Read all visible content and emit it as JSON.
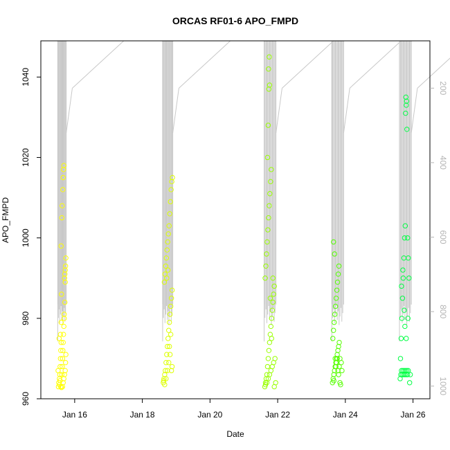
{
  "chart_data": {
    "type": "scatter",
    "title": "ORCAS RF01-6 APO_FMPD",
    "xlabel": "Date",
    "ylabel": "APO_FMPD",
    "x_ticks": [
      "Jan 16",
      "Jan 18",
      "Jan 20",
      "Jan 22",
      "Jan 24",
      "Jan 26"
    ],
    "x_tick_days": [
      16,
      18,
      20,
      22,
      24,
      26
    ],
    "xlim": [
      15.0,
      26.5
    ],
    "ylim": [
      960,
      1049
    ],
    "y_ticks": [
      960,
      980,
      1000,
      1020,
      1040
    ],
    "y2_label": "",
    "y2_ticks": [
      200,
      400,
      600,
      800,
      1000
    ],
    "y2lim": [
      1034,
      73
    ],
    "grid": false,
    "legend": "none",
    "flights": [
      {
        "start": 15.5,
        "end": 15.75,
        "color": "#FFFF00",
        "points": [
          [
            15.52,
            963
          ],
          [
            15.53,
            964
          ],
          [
            15.55,
            965
          ],
          [
            15.56,
            966
          ],
          [
            15.57,
            968
          ],
          [
            15.58,
            970
          ],
          [
            15.59,
            972
          ],
          [
            15.6,
            974
          ],
          [
            15.54,
            975
          ],
          [
            15.51,
            967
          ],
          [
            15.62,
            966
          ],
          [
            15.63,
            968
          ],
          [
            15.64,
            970
          ],
          [
            15.65,
            972
          ],
          [
            15.66,
            974
          ],
          [
            15.67,
            976
          ],
          [
            15.68,
            978
          ],
          [
            15.69,
            980
          ],
          [
            15.61,
            986
          ],
          [
            15.7,
            990
          ],
          [
            15.71,
            991
          ],
          [
            15.72,
            992
          ],
          [
            15.73,
            993
          ],
          [
            15.74,
            995
          ],
          [
            15.6,
            998
          ],
          [
            15.62,
            1005
          ],
          [
            15.63,
            1008
          ],
          [
            15.65,
            1012
          ],
          [
            15.66,
            1015
          ],
          [
            15.67,
            1017
          ],
          [
            15.68,
            1018
          ],
          [
            15.55,
            963.5
          ],
          [
            15.57,
            964.5
          ],
          [
            15.59,
            963
          ],
          [
            15.61,
            962.8
          ],
          [
            15.64,
            963
          ],
          [
            15.66,
            964
          ],
          [
            15.68,
            965
          ],
          [
            15.7,
            966
          ],
          [
            15.72,
            967
          ],
          [
            15.73,
            969
          ],
          [
            15.74,
            971
          ],
          [
            15.58,
            976
          ],
          [
            15.6,
            979
          ],
          [
            15.69,
            981
          ],
          [
            15.71,
            984
          ],
          [
            15.72,
            989
          ]
        ]
      },
      {
        "start": 18.6,
        "end": 18.9,
        "color": "#DDFF00",
        "points": [
          [
            18.62,
            964
          ],
          [
            18.64,
            965
          ],
          [
            18.66,
            966
          ],
          [
            18.68,
            967
          ],
          [
            18.7,
            969
          ],
          [
            18.72,
            971
          ],
          [
            18.74,
            973
          ],
          [
            18.76,
            975
          ],
          [
            18.78,
            977
          ],
          [
            18.8,
            979
          ],
          [
            18.82,
            981
          ],
          [
            18.84,
            983
          ],
          [
            18.86,
            985
          ],
          [
            18.88,
            987
          ],
          [
            18.65,
            989
          ],
          [
            18.67,
            991
          ],
          [
            18.69,
            993
          ],
          [
            18.71,
            995
          ],
          [
            18.73,
            997
          ],
          [
            18.75,
            999
          ],
          [
            18.77,
            1001
          ],
          [
            18.79,
            1003
          ],
          [
            18.81,
            1006
          ],
          [
            18.83,
            1009
          ],
          [
            18.85,
            1012
          ],
          [
            18.87,
            1014
          ],
          [
            18.89,
            1015
          ],
          [
            18.63,
            964.5
          ],
          [
            18.66,
            963.5
          ],
          [
            18.7,
            965
          ],
          [
            18.74,
            967
          ],
          [
            18.78,
            969
          ],
          [
            18.82,
            971
          ],
          [
            18.86,
            967
          ],
          [
            18.88,
            968
          ],
          [
            18.8,
            973
          ],
          [
            18.84,
            976
          ],
          [
            18.72,
            990
          ],
          [
            18.76,
            992
          ]
        ]
      },
      {
        "start": 21.6,
        "end": 21.95,
        "color": "#99FF00",
        "points": [
          [
            21.62,
            963
          ],
          [
            21.64,
            964
          ],
          [
            21.66,
            965
          ],
          [
            21.68,
            966
          ],
          [
            21.7,
            968
          ],
          [
            21.72,
            970
          ],
          [
            21.74,
            972
          ],
          [
            21.76,
            974
          ],
          [
            21.78,
            976
          ],
          [
            21.8,
            978
          ],
          [
            21.82,
            980
          ],
          [
            21.84,
            982
          ],
          [
            21.86,
            984
          ],
          [
            21.88,
            986
          ],
          [
            21.9,
            988
          ],
          [
            21.63,
            990
          ],
          [
            21.65,
            993
          ],
          [
            21.67,
            996
          ],
          [
            21.69,
            999
          ],
          [
            21.71,
            1002
          ],
          [
            21.73,
            1005
          ],
          [
            21.75,
            1008
          ],
          [
            21.77,
            1011
          ],
          [
            21.79,
            1014
          ],
          [
            21.81,
            1017
          ],
          [
            21.7,
            1020
          ],
          [
            21.72,
            1028
          ],
          [
            21.74,
            1037
          ],
          [
            21.76,
            1038
          ],
          [
            21.73,
            1042
          ],
          [
            21.75,
            1045
          ],
          [
            21.64,
            963.5
          ],
          [
            21.68,
            964
          ],
          [
            21.72,
            965
          ],
          [
            21.76,
            966
          ],
          [
            21.8,
            967
          ],
          [
            21.84,
            968
          ],
          [
            21.88,
            969
          ],
          [
            21.92,
            970
          ],
          [
            21.94,
            964
          ],
          [
            21.9,
            963
          ],
          [
            21.86,
            990
          ],
          [
            21.82,
            975
          ],
          [
            21.78,
            985
          ]
        ]
      },
      {
        "start": 23.6,
        "end": 23.95,
        "color": "#55FF00",
        "points": [
          [
            23.62,
            964
          ],
          [
            23.64,
            965
          ],
          [
            23.66,
            966
          ],
          [
            23.68,
            967
          ],
          [
            23.7,
            968
          ],
          [
            23.72,
            969
          ],
          [
            23.74,
            970
          ],
          [
            23.76,
            971
          ],
          [
            23.78,
            972
          ],
          [
            23.8,
            973
          ],
          [
            23.82,
            974
          ],
          [
            23.84,
            964
          ],
          [
            23.86,
            963.5
          ],
          [
            23.63,
            975
          ],
          [
            23.65,
            977
          ],
          [
            23.67,
            979
          ],
          [
            23.69,
            981
          ],
          [
            23.71,
            983
          ],
          [
            23.73,
            985
          ],
          [
            23.75,
            987
          ],
          [
            23.77,
            989
          ],
          [
            23.79,
            991
          ],
          [
            23.81,
            993
          ],
          [
            23.68,
            996
          ],
          [
            23.65,
            999
          ],
          [
            23.7,
            970
          ],
          [
            23.72,
            968
          ],
          [
            23.74,
            969
          ],
          [
            23.76,
            970
          ],
          [
            23.78,
            967
          ],
          [
            23.8,
            966
          ],
          [
            23.82,
            968
          ],
          [
            23.84,
            970
          ],
          [
            23.66,
            964.5
          ],
          [
            23.9,
            967
          ],
          [
            23.88,
            969
          ]
        ]
      },
      {
        "start": 25.6,
        "end": 25.95,
        "color": "#00FF44",
        "points": [
          [
            25.62,
            965
          ],
          [
            25.64,
            966
          ],
          [
            25.66,
            967
          ],
          [
            25.68,
            966
          ],
          [
            25.7,
            967
          ],
          [
            25.72,
            966
          ],
          [
            25.74,
            967
          ],
          [
            25.76,
            966
          ],
          [
            25.78,
            967
          ],
          [
            25.8,
            966
          ],
          [
            25.82,
            967
          ],
          [
            25.84,
            966
          ],
          [
            25.86,
            967
          ],
          [
            25.63,
            970
          ],
          [
            25.65,
            975
          ],
          [
            25.67,
            980
          ],
          [
            25.69,
            985
          ],
          [
            25.71,
            990
          ],
          [
            25.73,
            995
          ],
          [
            25.75,
            1000
          ],
          [
            25.77,
            1003
          ],
          [
            25.79,
            1035
          ],
          [
            25.81,
            1034
          ],
          [
            25.8,
            1033
          ],
          [
            25.78,
            1031
          ],
          [
            25.82,
            1027
          ],
          [
            25.84,
            1000
          ],
          [
            25.86,
            995
          ],
          [
            25.88,
            990
          ],
          [
            25.66,
            988
          ],
          [
            25.7,
            992
          ],
          [
            25.74,
            982
          ],
          [
            25.76,
            978
          ],
          [
            25.8,
            975
          ],
          [
            25.85,
            980
          ],
          [
            25.9,
            964
          ],
          [
            25.92,
            966
          ]
        ]
      }
    ]
  }
}
